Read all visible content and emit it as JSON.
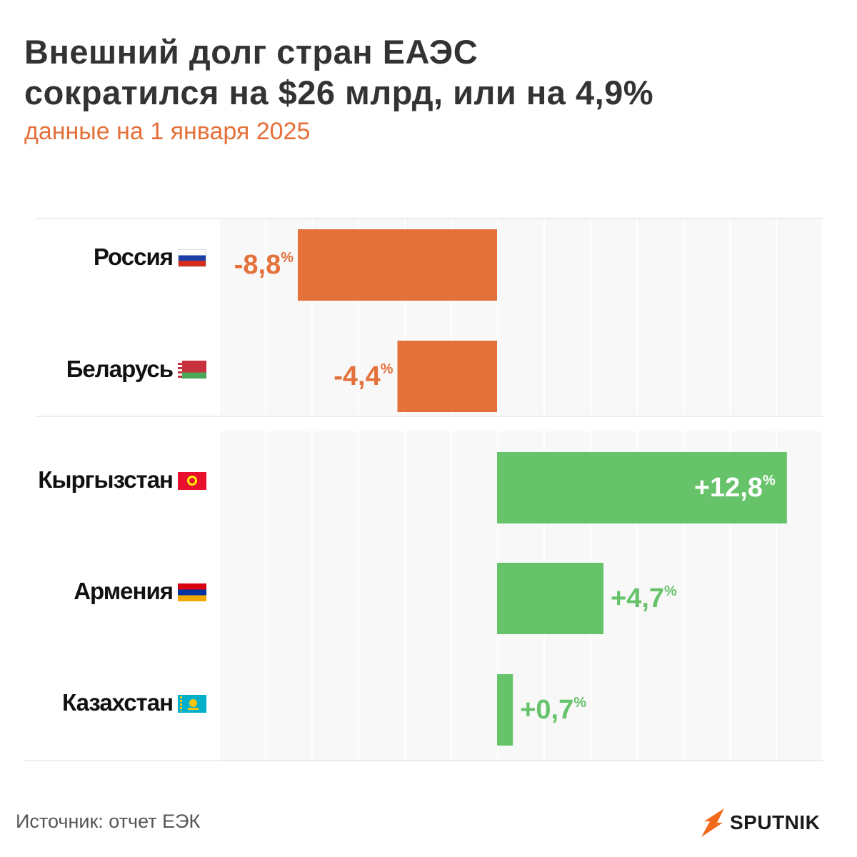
{
  "title_line1": "Внешний долг стран ЕАЭС",
  "title_line2": "сократился на $26 млрд, или на 4,9%",
  "subtitle": "данные на 1 января 2025",
  "source": "Источник: отчет ЕЭК",
  "brand": "SPUTNIK",
  "colors": {
    "negative": "#e4703a",
    "positive": "#66c36a",
    "grid_bg": "#f7f8f7",
    "title": "#333333",
    "subtitle": "#e4703a"
  },
  "chart_data": {
    "type": "bar",
    "orientation": "horizontal",
    "title": "Внешний долг стран ЕАЭС сократился на $26 млрд, или на 4,9%",
    "unit": "%",
    "xlim": [
      -18,
      18
    ],
    "categories": [
      "Россия",
      "Беларусь",
      "Кыргызстан",
      "Армения",
      "Казахстан"
    ],
    "values": [
      -8.8,
      -4.4,
      12.8,
      4.7,
      0.7
    ],
    "labels": [
      "-8,8",
      "-4,4",
      "+12,8",
      "+4,7",
      "+0,7"
    ],
    "groups": [
      {
        "name": "decrease",
        "categories": [
          "Россия",
          "Беларусь"
        ]
      },
      {
        "name": "increase",
        "categories": [
          "Кыргызстан",
          "Армения",
          "Казахстан"
        ]
      }
    ]
  },
  "flags": [
    {
      "country": "Россия",
      "icon": "russia-flag-icon"
    },
    {
      "country": "Беларусь",
      "icon": "belarus-flag-icon"
    },
    {
      "country": "Кыргызстан",
      "icon": "kyrgyzstan-flag-icon"
    },
    {
      "country": "Армения",
      "icon": "armenia-flag-icon"
    },
    {
      "country": "Казахстан",
      "icon": "kazakhstan-flag-icon"
    }
  ]
}
